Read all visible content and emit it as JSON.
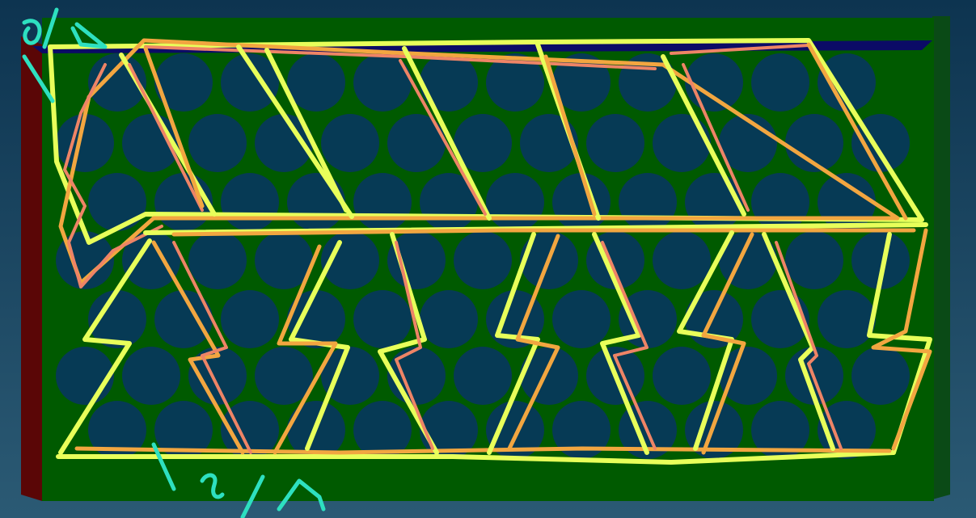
{
  "canvas": {
    "background_top": "#0d3450",
    "background_bottom": "#2b5a74"
  },
  "board": {
    "color": "#005a00",
    "left_edge_color": "#5a0606",
    "top_edge_color": "#0b0b66",
    "hole_color": "#063a55",
    "hole_rows": 7
  },
  "sketch": {
    "stroke_colors": [
      "#e8ff5a",
      "#f2a640",
      "#ee8466"
    ],
    "annotation_color": "#2ee0c0",
    "upper_band_shapes": 6,
    "lower_band_shapes": 7
  }
}
